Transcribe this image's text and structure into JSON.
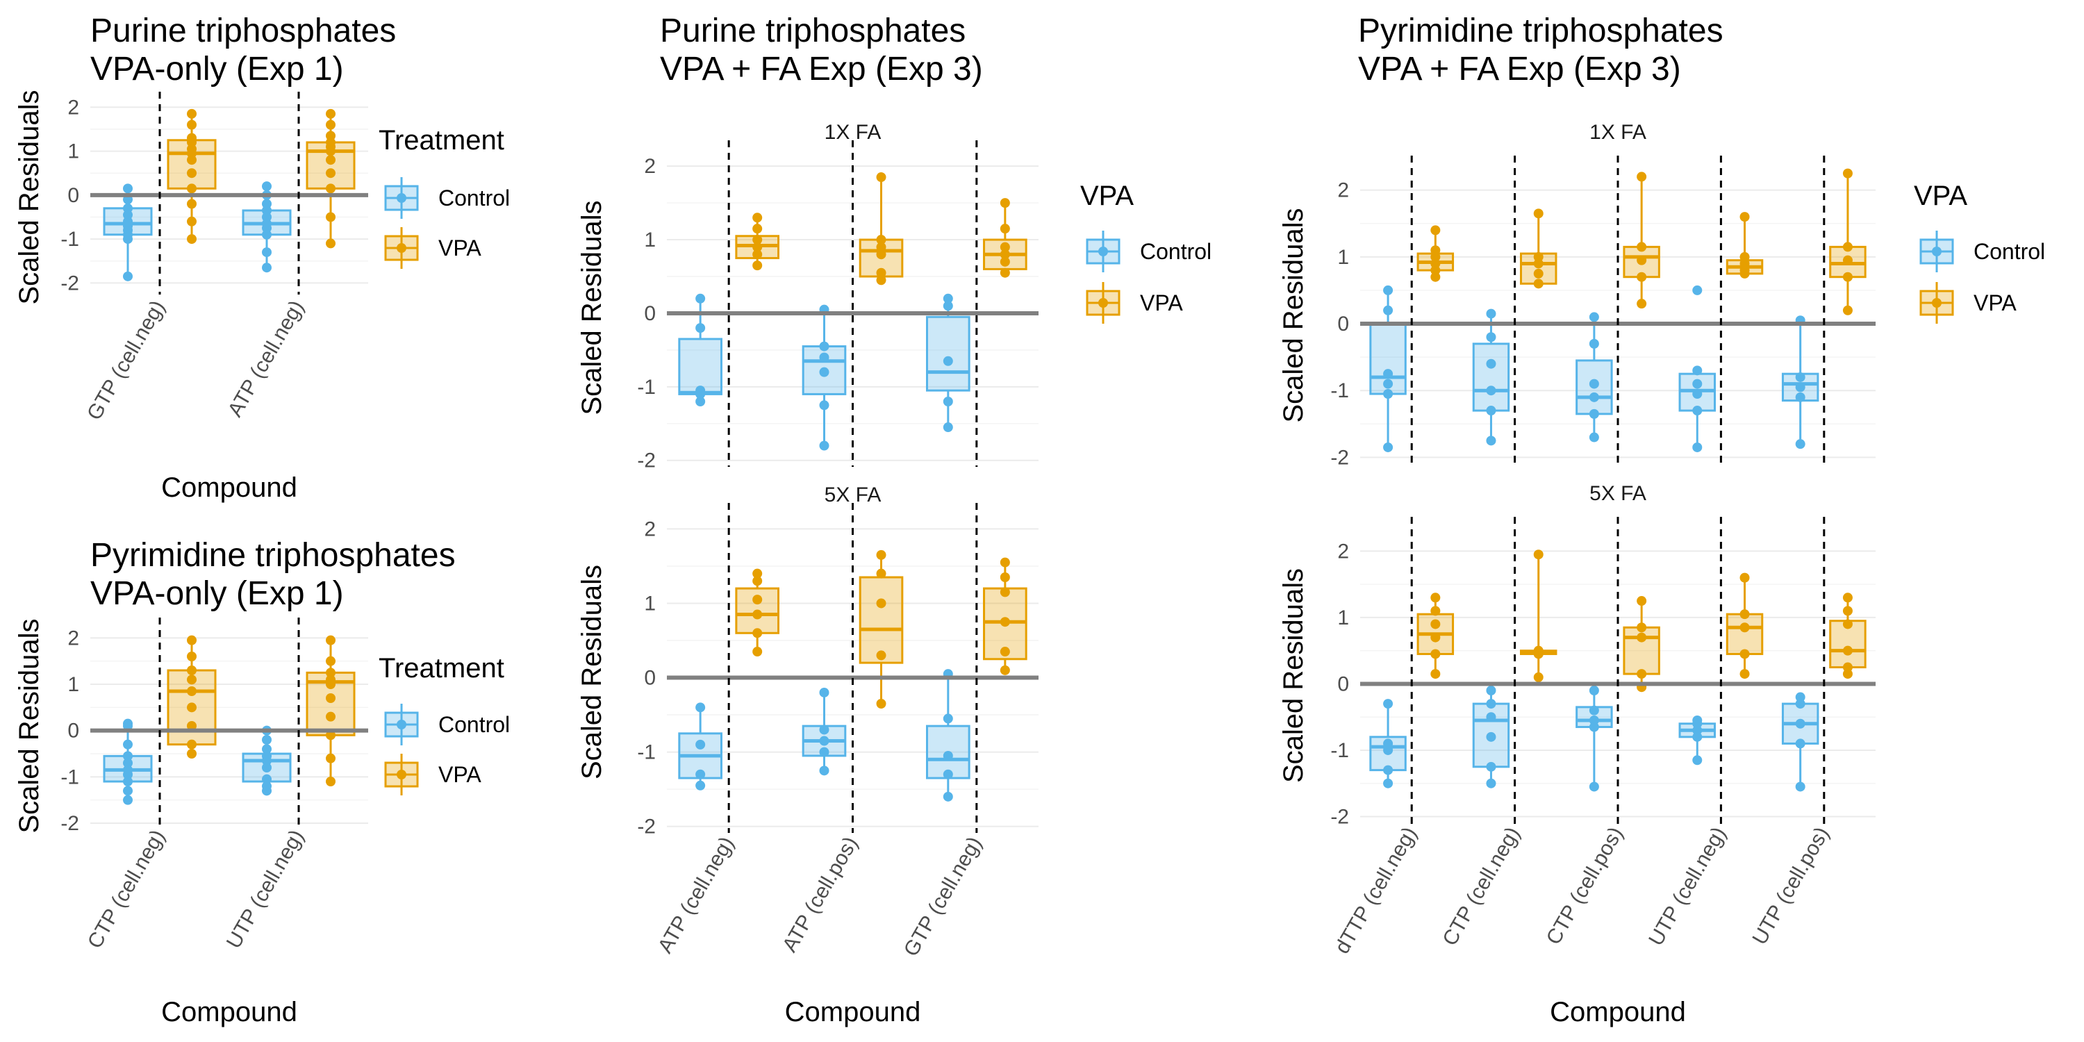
{
  "colors": {
    "control": "#56B4E9",
    "vpa": "#E69F00"
  },
  "chart_data": [
    {
      "id": "A",
      "type": "box",
      "title_lines": [
        "Purine triphosphates",
        "VPA-only (Exp 1)"
      ],
      "xlabel": "Compound",
      "ylabel": "Scaled Residuals",
      "yticks": [
        -2,
        -1,
        0,
        1,
        2
      ],
      "ylim": [
        -2.2,
        2.1
      ],
      "legend": {
        "title": "Treatment",
        "items": [
          "Control",
          "VPA"
        ]
      },
      "panels": [
        {
          "strip": "",
          "categories": [
            "GTP (cell.neg)",
            "ATP (cell.neg)"
          ],
          "boxes": [
            {
              "group": "Control",
              "q1": -0.9,
              "median": -0.65,
              "q3": -0.3,
              "low": -1.85,
              "high": 0.15,
              "points": [
                -1.85,
                -1.0,
                -0.9,
                -0.8,
                -0.7,
                -0.6,
                -0.45,
                -0.3,
                -0.1,
                0.15
              ]
            },
            {
              "group": "VPA",
              "q1": 0.15,
              "median": 0.95,
              "q3": 1.25,
              "low": -1.0,
              "high": 1.85,
              "points": [
                -1.0,
                -0.6,
                -0.2,
                0.15,
                0.5,
                0.8,
                0.95,
                1.05,
                1.2,
                1.3,
                1.6,
                1.85
              ]
            },
            {
              "group": "Control",
              "q1": -0.9,
              "median": -0.65,
              "q3": -0.35,
              "low": -1.65,
              "high": 0.2,
              "points": [
                -1.65,
                -1.3,
                -0.9,
                -0.75,
                -0.65,
                -0.5,
                -0.35,
                -0.2,
                0.0,
                0.2
              ]
            },
            {
              "group": "VPA",
              "q1": 0.15,
              "median": 1.0,
              "q3": 1.2,
              "low": -1.1,
              "high": 1.85,
              "points": [
                -1.1,
                -0.5,
                0.15,
                0.5,
                0.8,
                1.0,
                1.1,
                1.2,
                1.35,
                1.6,
                1.85
              ]
            }
          ]
        }
      ]
    },
    {
      "id": "B",
      "type": "box",
      "title_lines": [
        "Pyrimidine triphosphates",
        "VPA-only (Exp 1)"
      ],
      "xlabel": "Compound",
      "ylabel": "Scaled Residuals",
      "yticks": [
        -2,
        -1,
        0,
        1,
        2
      ],
      "ylim": [
        -2.0,
        2.2
      ],
      "legend": {
        "title": "Treatment",
        "items": [
          "Control",
          "VPA"
        ]
      },
      "panels": [
        {
          "strip": "",
          "categories": [
            "CTP (cell.neg)",
            "UTP (cell.neg)"
          ],
          "boxes": [
            {
              "group": "Control",
              "q1": -1.1,
              "median": -0.85,
              "q3": -0.55,
              "low": -1.5,
              "high": 0.15,
              "points": [
                -1.5,
                -1.3,
                -1.1,
                -0.95,
                -0.85,
                -0.7,
                -0.55,
                -0.3,
                0.1,
                0.15
              ]
            },
            {
              "group": "VPA",
              "q1": -0.3,
              "median": 0.85,
              "q3": 1.3,
              "low": -0.5,
              "high": 1.95,
              "points": [
                -0.5,
                -0.3,
                0.1,
                0.5,
                0.85,
                1.1,
                1.3,
                1.6,
                1.95
              ]
            },
            {
              "group": "Control",
              "q1": -1.1,
              "median": -0.65,
              "q3": -0.5,
              "low": -1.3,
              "high": 0.0,
              "points": [
                -1.3,
                -1.2,
                -1.05,
                -0.8,
                -0.65,
                -0.55,
                -0.4,
                -0.2,
                0.0
              ]
            },
            {
              "group": "VPA",
              "q1": -0.1,
              "median": 1.05,
              "q3": 1.25,
              "low": -1.1,
              "high": 1.95,
              "points": [
                -1.1,
                -0.6,
                -0.1,
                0.3,
                0.7,
                1.0,
                1.1,
                1.25,
                1.5,
                1.95
              ]
            }
          ]
        }
      ]
    },
    {
      "id": "C",
      "type": "box",
      "title_lines": [
        "Purine triphosphates",
        "VPA + FA Exp (Exp 3)"
      ],
      "xlabel": "Compound",
      "ylabel": "Scaled Residuals",
      "yticks": [
        -2,
        -1,
        0,
        1,
        2
      ],
      "ylim": [
        -2.05,
        2.2
      ],
      "legend": {
        "title": "VPA",
        "items": [
          "Control",
          "VPA"
        ]
      },
      "panels": [
        {
          "strip": "1X FA",
          "categories": [
            "ATP (cell.neg)",
            "ATP (cell.pos)",
            "GTP (cell.neg)"
          ],
          "boxes": [
            {
              "group": "Control",
              "q1": -1.1,
              "median": -1.08,
              "q3": -0.35,
              "low": -1.2,
              "high": 0.2,
              "points": [
                -1.2,
                -1.1,
                -1.05,
                -0.2,
                0.2
              ]
            },
            {
              "group": "VPA",
              "q1": 0.75,
              "median": 0.92,
              "q3": 1.05,
              "low": 0.65,
              "high": 1.3,
              "points": [
                0.65,
                0.8,
                0.9,
                1.0,
                1.15,
                1.3
              ]
            },
            {
              "group": "Control",
              "q1": -1.1,
              "median": -0.65,
              "q3": -0.45,
              "low": -1.8,
              "high": 0.05,
              "points": [
                -1.8,
                -1.25,
                -0.8,
                -0.6,
                -0.45,
                0.05
              ]
            },
            {
              "group": "VPA",
              "q1": 0.5,
              "median": 0.85,
              "q3": 1.0,
              "low": 0.45,
              "high": 1.85,
              "points": [
                0.45,
                0.55,
                0.8,
                0.9,
                1.0,
                1.85
              ]
            },
            {
              "group": "Control",
              "q1": -1.05,
              "median": -0.8,
              "q3": -0.05,
              "low": -1.55,
              "high": 0.2,
              "points": [
                -1.55,
                -1.2,
                -0.65,
                0.1,
                0.2
              ]
            },
            {
              "group": "VPA",
              "q1": 0.6,
              "median": 0.8,
              "q3": 1.0,
              "low": 0.55,
              "high": 1.5,
              "points": [
                0.55,
                0.7,
                0.8,
                0.9,
                1.15,
                1.5
              ]
            }
          ]
        },
        {
          "strip": "5X FA",
          "categories": [
            "ATP (cell.neg)",
            "ATP (cell.pos)",
            "GTP (cell.neg)"
          ],
          "boxes": [
            {
              "group": "Control",
              "q1": -1.35,
              "median": -1.05,
              "q3": -0.75,
              "low": -1.45,
              "high": -0.4,
              "points": [
                -1.45,
                -1.3,
                -0.9,
                -0.4
              ]
            },
            {
              "group": "VPA",
              "q1": 0.6,
              "median": 0.85,
              "q3": 1.2,
              "low": 0.35,
              "high": 1.4,
              "points": [
                0.35,
                0.6,
                0.85,
                1.05,
                1.3,
                1.4
              ]
            },
            {
              "group": "Control",
              "q1": -1.05,
              "median": -0.85,
              "q3": -0.65,
              "low": -1.25,
              "high": -0.2,
              "points": [
                -1.25,
                -1.0,
                -0.85,
                -0.7,
                -0.2
              ]
            },
            {
              "group": "VPA",
              "q1": 0.2,
              "median": 0.65,
              "q3": 1.35,
              "low": -0.35,
              "high": 1.65,
              "points": [
                -0.35,
                0.3,
                1.0,
                1.4,
                1.65
              ]
            },
            {
              "group": "Control",
              "q1": -1.35,
              "median": -1.1,
              "q3": -0.65,
              "low": -1.6,
              "high": 0.05,
              "points": [
                -1.6,
                -1.3,
                -1.05,
                -0.55,
                0.05
              ]
            },
            {
              "group": "VPA",
              "q1": 0.25,
              "median": 0.75,
              "q3": 1.2,
              "low": 0.1,
              "high": 1.55,
              "points": [
                0.1,
                0.35,
                0.75,
                1.15,
                1.35,
                1.55
              ]
            }
          ]
        }
      ]
    },
    {
      "id": "D",
      "type": "box",
      "title_lines": [
        "Pyrimidine triphosphates",
        "VPA + FA Exp (Exp 3)"
      ],
      "xlabel": "Compound",
      "ylabel": "Scaled Residuals",
      "yticks": [
        -2,
        -1,
        0,
        1,
        2
      ],
      "ylim": [
        -2.1,
        2.35
      ],
      "legend": {
        "title": "VPA",
        "items": [
          "Control",
          "VPA"
        ]
      },
      "panels": [
        {
          "strip": "1X FA",
          "categories": [
            "dTTP (cell.neg)",
            "CTP (cell.neg)",
            "CTP (cell.pos)",
            "UTP (cell.neg)",
            "UTP (cell.pos)"
          ],
          "boxes": [
            {
              "group": "Control",
              "q1": -1.05,
              "median": -0.8,
              "q3": 0.0,
              "low": -1.85,
              "high": 0.5,
              "points": [
                -1.85,
                -1.05,
                -0.9,
                -0.75,
                0.2,
                0.5
              ]
            },
            {
              "group": "VPA",
              "q1": 0.8,
              "median": 0.92,
              "q3": 1.05,
              "low": 0.7,
              "high": 1.4,
              "points": [
                0.7,
                0.8,
                0.9,
                1.0,
                1.1,
                1.4
              ]
            },
            {
              "group": "Control",
              "q1": -1.3,
              "median": -1.0,
              "q3": -0.3,
              "low": -1.75,
              "high": 0.15,
              "points": [
                -1.75,
                -1.3,
                -1.0,
                -0.6,
                -0.2,
                0.15
              ]
            },
            {
              "group": "VPA",
              "q1": 0.6,
              "median": 0.9,
              "q3": 1.05,
              "low": 0.6,
              "high": 1.65,
              "points": [
                0.6,
                0.75,
                0.9,
                1.0,
                1.65
              ]
            },
            {
              "group": "Control",
              "q1": -1.35,
              "median": -1.1,
              "q3": -0.55,
              "low": -1.7,
              "high": 0.1,
              "points": [
                -1.7,
                -1.35,
                -1.1,
                -0.9,
                -0.3,
                0.1
              ]
            },
            {
              "group": "VPA",
              "q1": 0.7,
              "median": 1.0,
              "q3": 1.15,
              "low": 0.3,
              "high": 2.2,
              "points": [
                0.3,
                0.7,
                0.95,
                1.15,
                2.2
              ]
            },
            {
              "group": "Control",
              "q1": -1.3,
              "median": -1.0,
              "q3": -0.75,
              "low": -1.85,
              "high": -0.7,
              "points": [
                -1.85,
                -1.3,
                -1.05,
                -0.9,
                -0.7,
                0.5
              ]
            },
            {
              "group": "VPA",
              "q1": 0.75,
              "median": 0.85,
              "q3": 0.95,
              "low": 0.75,
              "high": 1.6,
              "points": [
                0.75,
                0.8,
                0.9,
                1.0,
                1.6
              ]
            },
            {
              "group": "Control",
              "q1": -1.15,
              "median": -0.9,
              "q3": -0.75,
              "low": -1.8,
              "high": 0.05,
              "points": [
                -1.8,
                -1.1,
                -0.95,
                -0.8,
                0.05
              ]
            },
            {
              "group": "VPA",
              "q1": 0.7,
              "median": 0.9,
              "q3": 1.15,
              "low": 0.2,
              "high": 2.25,
              "points": [
                0.2,
                0.7,
                0.95,
                1.15,
                2.25
              ]
            }
          ]
        },
        {
          "strip": "5X FA",
          "categories": [
            "dTTP (cell.neg)",
            "CTP (cell.neg)",
            "CTP (cell.pos)",
            "UTP (cell.neg)",
            "UTP (cell.pos)"
          ],
          "boxes": [
            {
              "group": "Control",
              "q1": -1.3,
              "median": -0.95,
              "q3": -0.8,
              "low": -1.5,
              "high": -0.3,
              "points": [
                -1.5,
                -1.3,
                -1.0,
                -0.9,
                -0.3
              ]
            },
            {
              "group": "VPA",
              "q1": 0.45,
              "median": 0.75,
              "q3": 1.05,
              "low": 0.15,
              "high": 1.3,
              "points": [
                0.15,
                0.45,
                0.7,
                0.9,
                1.1,
                1.3
              ]
            },
            {
              "group": "Control",
              "q1": -1.25,
              "median": -0.55,
              "q3": -0.3,
              "low": -1.5,
              "high": -0.1,
              "points": [
                -1.5,
                -1.25,
                -0.8,
                -0.5,
                -0.3,
                -0.1
              ]
            },
            {
              "group": "VPA",
              "q1": 0.45,
              "median": 0.48,
              "q3": 0.5,
              "low": 0.1,
              "high": 1.95,
              "points": [
                0.1,
                0.45,
                0.5,
                1.95
              ]
            },
            {
              "group": "Control",
              "q1": -0.65,
              "median": -0.55,
              "q3": -0.35,
              "low": -1.55,
              "high": -0.1,
              "points": [
                -1.55,
                -0.65,
                -0.55,
                -0.4,
                -0.1
              ]
            },
            {
              "group": "VPA",
              "q1": 0.15,
              "median": 0.7,
              "q3": 0.85,
              "low": -0.05,
              "high": 1.25,
              "points": [
                -0.05,
                0.15,
                0.7,
                0.85,
                1.25
              ]
            },
            {
              "group": "Control",
              "q1": -0.8,
              "median": -0.7,
              "q3": -0.6,
              "low": -1.15,
              "high": -0.55,
              "points": [
                -1.15,
                -0.8,
                -0.7,
                -0.6,
                -0.55
              ]
            },
            {
              "group": "VPA",
              "q1": 0.45,
              "median": 0.85,
              "q3": 1.05,
              "low": 0.15,
              "high": 1.6,
              "points": [
                0.15,
                0.45,
                0.85,
                1.05,
                1.6
              ]
            },
            {
              "group": "Control",
              "q1": -0.9,
              "median": -0.6,
              "q3": -0.3,
              "low": -1.55,
              "high": -0.2,
              "points": [
                -1.55,
                -0.9,
                -0.6,
                -0.3,
                -0.2
              ]
            },
            {
              "group": "VPA",
              "q1": 0.25,
              "median": 0.5,
              "q3": 0.95,
              "low": 0.15,
              "high": 1.3,
              "points": [
                0.15,
                0.25,
                0.5,
                0.9,
                1.1,
                1.3
              ]
            }
          ]
        }
      ]
    }
  ]
}
